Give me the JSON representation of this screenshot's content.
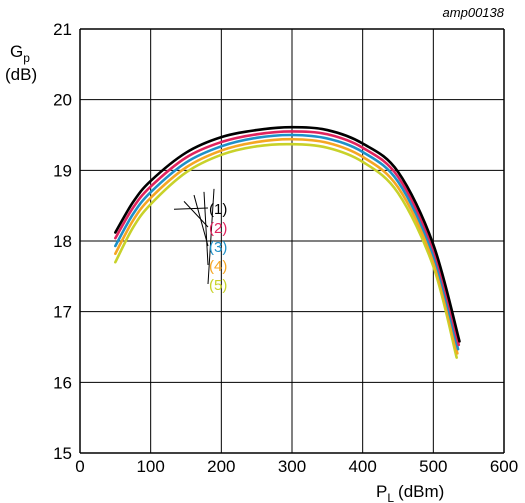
{
  "chart_data": {
    "type": "line",
    "identifier": "amp00138",
    "xlabel": {
      "main": "P",
      "sub": "L",
      "unit": "(dBm)"
    },
    "ylabel": {
      "main": "G",
      "sub": "p",
      "unit": "(dB)"
    },
    "xlim": [
      0,
      600
    ],
    "ylim": [
      15,
      21
    ],
    "xticks": [
      "0",
      "100",
      "200",
      "300",
      "400",
      "500",
      "600"
    ],
    "yticks": [
      "15",
      "16",
      "17",
      "18",
      "19",
      "20",
      "21"
    ],
    "grid": true,
    "series": [
      {
        "name": "(1)",
        "color": "#000000",
        "x": [
          50,
          75,
          100,
          150,
          200,
          250,
          300,
          350,
          400,
          450,
          500,
          537
        ],
        "y": [
          18.12,
          18.55,
          18.85,
          19.25,
          19.47,
          19.57,
          19.61,
          19.57,
          19.38,
          18.98,
          17.95,
          16.58
        ]
      },
      {
        "name": "(2)",
        "color": "#e0245e",
        "x": [
          50,
          75,
          100,
          150,
          200,
          250,
          300,
          350,
          400,
          450,
          500,
          536
        ],
        "y": [
          18.04,
          18.47,
          18.77,
          19.18,
          19.4,
          19.51,
          19.55,
          19.51,
          19.32,
          18.91,
          17.88,
          16.53
        ]
      },
      {
        "name": "(3)",
        "color": "#1e90c8",
        "x": [
          50,
          75,
          100,
          150,
          200,
          250,
          300,
          350,
          400,
          450,
          500,
          535
        ],
        "y": [
          17.93,
          18.38,
          18.69,
          19.11,
          19.34,
          19.46,
          19.5,
          19.45,
          19.26,
          18.84,
          17.8,
          16.47
        ]
      },
      {
        "name": "(4)",
        "color": "#f5a623",
        "x": [
          50,
          75,
          100,
          150,
          200,
          250,
          300,
          350,
          400,
          450,
          500,
          534
        ],
        "y": [
          17.82,
          18.29,
          18.61,
          19.04,
          19.28,
          19.4,
          19.44,
          19.39,
          19.19,
          18.76,
          17.72,
          16.41
        ]
      },
      {
        "name": "(5)",
        "color": "#c8d22a",
        "x": [
          50,
          75,
          100,
          150,
          200,
          250,
          300,
          350,
          400,
          450,
          500,
          533
        ],
        "y": [
          17.7,
          18.19,
          18.52,
          18.97,
          19.22,
          19.34,
          19.37,
          19.32,
          19.12,
          18.68,
          17.64,
          16.35
        ]
      }
    ]
  }
}
